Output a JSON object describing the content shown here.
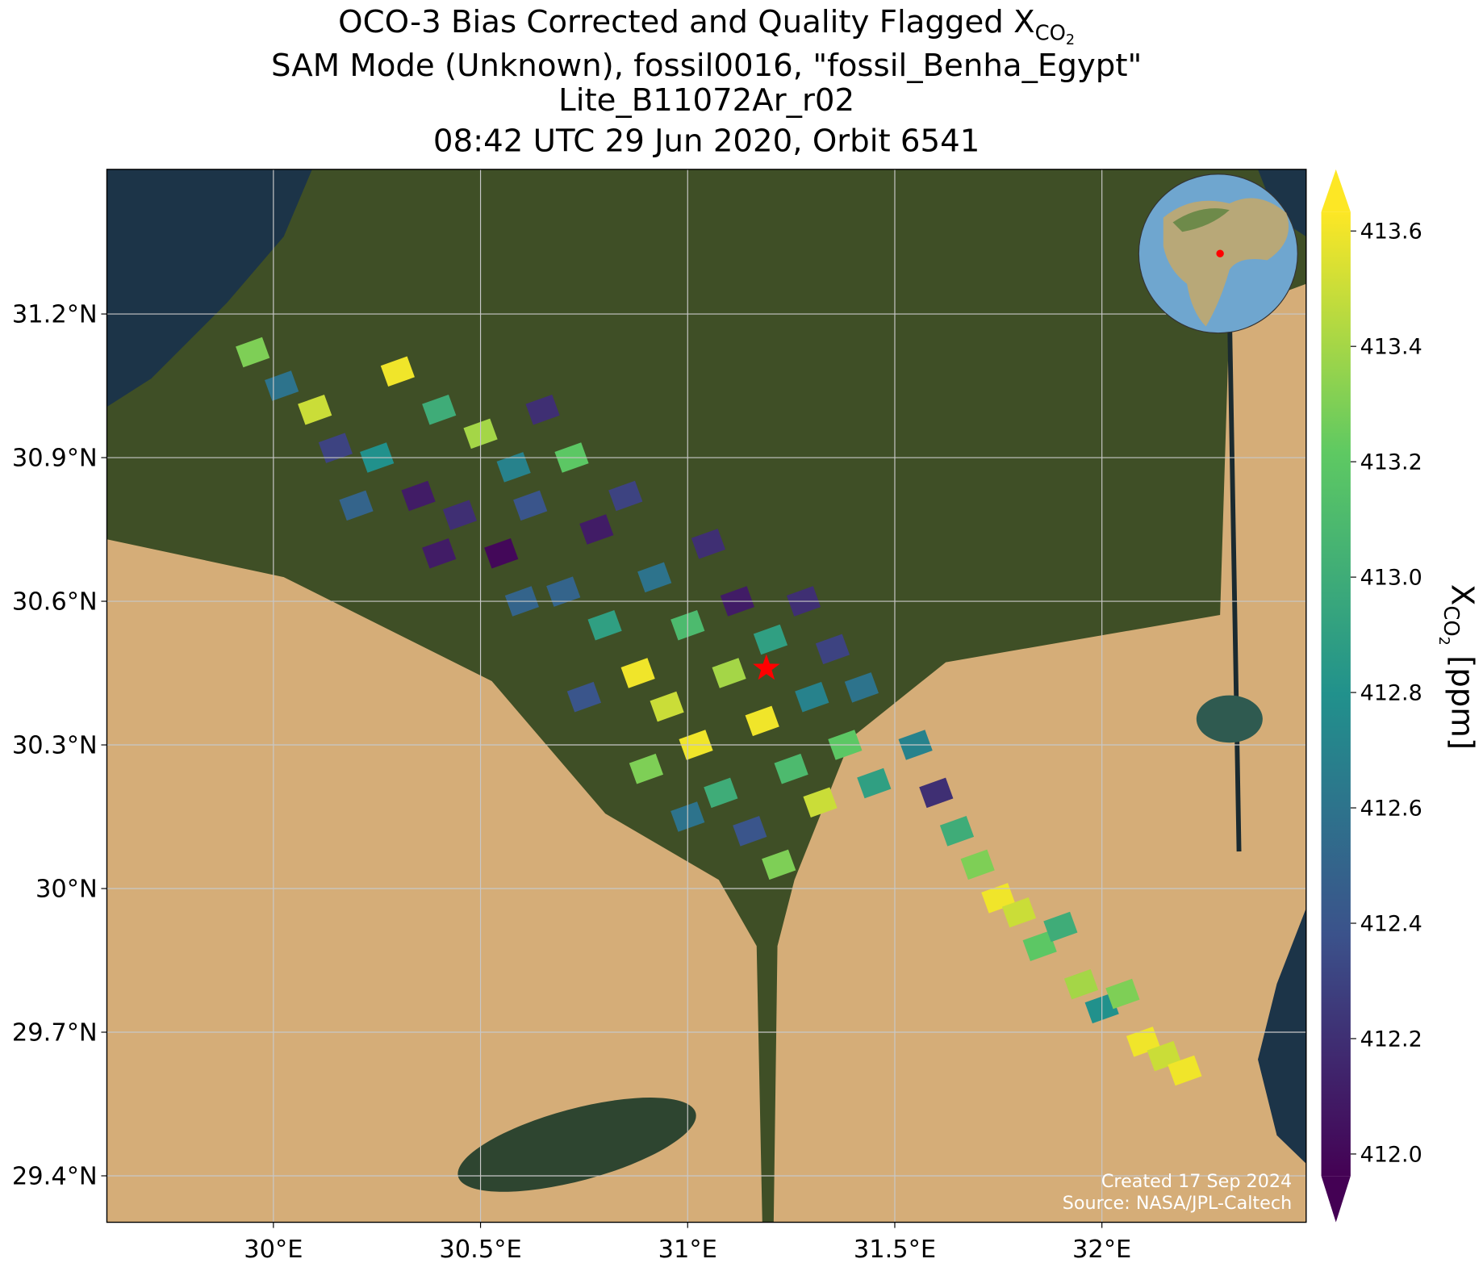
{
  "chart_data": {
    "type": "map",
    "title": {
      "text": "OCO-3 Bias Corrected and Quality Flagged X",
      "subscript": "CO",
      "subsubscript": "2"
    },
    "subtitle_lines": [
      "SAM Mode (Unknown), fossil0016, \"fossil_Benha_Egypt\"",
      "Lite_B11072Ar_r02",
      "08:42 UTC 29 Jun 2020, Orbit 6541"
    ],
    "xlim": [
      29.598,
      32.493
    ],
    "ylim": [
      29.303,
      31.502
    ],
    "xticks": [
      {
        "value": 30,
        "label": "30°E"
      },
      {
        "value": 30.5,
        "label": "30.5°E"
      },
      {
        "value": 31,
        "label": "31°E"
      },
      {
        "value": 31.5,
        "label": "31.5°E"
      },
      {
        "value": 32,
        "label": "32°E"
      }
    ],
    "yticks": [
      {
        "value": 29.4,
        "label": "29.4°N"
      },
      {
        "value": 29.7,
        "label": "29.7°N"
      },
      {
        "value": 30,
        "label": "30°N"
      },
      {
        "value": 30.3,
        "label": "30.3°N"
      },
      {
        "value": 30.6,
        "label": "30.6°N"
      },
      {
        "value": 30.9,
        "label": "30.9°N"
      },
      {
        "value": 31.2,
        "label": "31.2°N"
      }
    ],
    "grid": true,
    "colormap": "viridis",
    "clim": [
      411.962,
      413.633
    ],
    "cticks": [
      {
        "value": 412.0,
        "label": "412.0"
      },
      {
        "value": 412.2,
        "label": "412.2"
      },
      {
        "value": 412.4,
        "label": "412.4"
      },
      {
        "value": 412.6,
        "label": "412.6"
      },
      {
        "value": 412.8,
        "label": "412.8"
      },
      {
        "value": 413.0,
        "label": "413.0"
      },
      {
        "value": 413.2,
        "label": "413.2"
      },
      {
        "value": 413.4,
        "label": "413.4"
      },
      {
        "value": 413.6,
        "label": "413.6"
      }
    ],
    "colorbar_label": {
      "text": "X",
      "subscript": "CO",
      "subsubscript": "2",
      "unit": " [ppm]"
    },
    "site": {
      "lon": 31.19,
      "lat": 30.46,
      "color": "#ff0000"
    },
    "soundings": {
      "lon": [
        29.95,
        30.02,
        30.1,
        30.15,
        30.25,
        30.3,
        30.35,
        30.4,
        30.45,
        30.5,
        30.55,
        30.58,
        30.62,
        30.65,
        30.7,
        30.72,
        30.78,
        30.8,
        30.85,
        30.88,
        30.92,
        30.95,
        31.0,
        31.02,
        31.05,
        31.08,
        31.1,
        31.12,
        31.15,
        31.18,
        31.2,
        31.22,
        31.25,
        31.28,
        31.3,
        31.32,
        31.35,
        31.38,
        31.42,
        31.45,
        31.55,
        31.6,
        31.65,
        31.7,
        31.75,
        31.8,
        31.85,
        31.9,
        31.95,
        32.0,
        32.05,
        32.1,
        32.15,
        32.2,
        30.6,
        30.75,
        30.9,
        31.0,
        30.4,
        30.2
      ],
      "lat": [
        31.12,
        31.05,
        31.0,
        30.92,
        30.9,
        31.08,
        30.82,
        31.0,
        30.78,
        30.95,
        30.7,
        30.88,
        30.8,
        31.0,
        30.62,
        30.9,
        30.75,
        30.55,
        30.82,
        30.45,
        30.65,
        30.38,
        30.55,
        30.3,
        30.72,
        30.2,
        30.45,
        30.6,
        30.12,
        30.35,
        30.52,
        30.05,
        30.25,
        30.6,
        30.4,
        30.18,
        30.5,
        30.3,
        30.42,
        30.22,
        30.3,
        30.2,
        30.12,
        30.05,
        29.98,
        29.95,
        29.88,
        29.92,
        29.8,
        29.75,
        29.78,
        29.68,
        29.65,
        29.62,
        30.6,
        30.4,
        30.25,
        30.15,
        30.7,
        30.8
      ],
      "xco2": [
        413.3,
        412.6,
        413.5,
        412.3,
        412.8,
        413.6,
        412.1,
        413.0,
        412.2,
        413.4,
        412.0,
        412.7,
        412.4,
        412.2,
        412.5,
        413.2,
        412.1,
        412.9,
        412.3,
        413.6,
        412.6,
        413.5,
        413.1,
        413.6,
        412.2,
        413.0,
        413.4,
        412.1,
        412.4,
        413.6,
        412.9,
        413.3,
        413.1,
        412.2,
        412.7,
        413.5,
        412.3,
        413.2,
        412.6,
        412.9,
        412.7,
        412.2,
        413.0,
        413.3,
        413.6,
        413.5,
        413.2,
        413.0,
        413.4,
        412.8,
        413.3,
        413.6,
        413.5,
        413.6,
        412.5,
        412.4,
        413.3,
        412.6,
        412.1,
        412.5
      ]
    },
    "footer": [
      "Created 17 Sep 2024",
      "Source: NASA/JPL-Caltech"
    ]
  }
}
